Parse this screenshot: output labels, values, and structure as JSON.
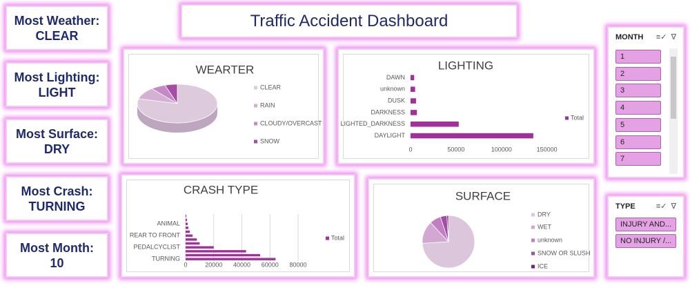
{
  "title": "Traffic Accident Dashboard",
  "kpis": [
    {
      "label": "Most Weather:",
      "value": "CLEAR"
    },
    {
      "label": "Most Lighting:",
      "value": "LIGHT"
    },
    {
      "label": "Most Surface:",
      "value": "DRY"
    },
    {
      "label": "Most Crash:",
      "value": "TURNING"
    },
    {
      "label": "Most Month:",
      "value": "10"
    }
  ],
  "chart_data": [
    {
      "type": "pie",
      "title": "WEARTER",
      "categories": [
        "CLEAR",
        "RAIN",
        "CLOUDY/OVERCAST",
        "SNOW"
      ],
      "values": [
        79,
        10,
        6,
        5
      ],
      "colors": [
        "#ddcadd",
        "#d4b0d4",
        "#c58ac5",
        "#a64ea6"
      ],
      "legend": "right"
    },
    {
      "type": "bar",
      "orientation": "horizontal",
      "title": "LIGHTING",
      "categories": [
        "DAYLIGHT",
        "LIGHTED_DARKNESS",
        "DARKNESS",
        "DUSK",
        "unknown",
        "DAWN"
      ],
      "series": [
        {
          "name": "Total",
          "color": "#a0309a",
          "values": [
            135000,
            53000,
            7000,
            6000,
            5000,
            4000
          ]
        }
      ],
      "xlim": [
        0,
        170000
      ],
      "xticks": [
        0,
        50000,
        100000,
        150000
      ],
      "grid": false,
      "legend": "right"
    },
    {
      "type": "bar",
      "orientation": "horizontal",
      "title": "CRASH TYPE",
      "categories": [
        "TURNING",
        null,
        null,
        "PEDALCYCLIST",
        null,
        null,
        "REAR TO FRONT",
        null,
        null,
        "ANIMAL",
        null,
        null
      ],
      "series": [
        {
          "name": "Total",
          "color": "#a0309a",
          "values": [
            64000,
            53000,
            43000,
            20000,
            10000,
            8000,
            5000,
            3000,
            2000,
            1500,
            1000,
            500
          ]
        }
      ],
      "xlim": [
        0,
        80000
      ],
      "xticks": [
        0,
        20000,
        40000,
        60000,
        80000
      ],
      "grid": true,
      "legend": "right"
    },
    {
      "type": "pie",
      "title": "SURFACE",
      "categories": [
        "DRY",
        "WET",
        "unknown",
        "SNOW OR SLUSH",
        "ICE"
      ],
      "values": [
        74,
        14,
        7,
        4,
        1
      ],
      "colors": [
        "#dcc6dc",
        "#d2a8d2",
        "#c27ec2",
        "#a24ea8",
        "#7e1a80"
      ],
      "legend": "right"
    }
  ],
  "slicers": [
    {
      "title": "MONTH",
      "items": [
        "1",
        "2",
        "3",
        "4",
        "5",
        "6",
        "7"
      ]
    },
    {
      "title": "TYPE",
      "items": [
        "INJURY AND...",
        "NO INJURY /..."
      ]
    }
  ]
}
